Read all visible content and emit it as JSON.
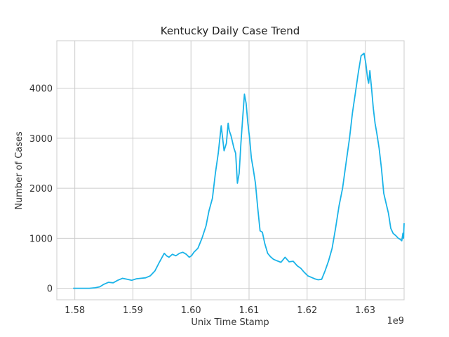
{
  "chart_data": {
    "type": "line",
    "title": "Kentucky Daily Case Trend",
    "xlabel": "Unix Time Stamp",
    "ylabel": "Number of Cases",
    "x_offset_text": "1e9",
    "xlim": [
      1.5769,
      1.6367
    ],
    "ylim": [
      -230,
      4950
    ],
    "x_ticks": [
      1.58,
      1.59,
      1.6,
      1.61,
      1.62,
      1.63
    ],
    "x_tick_labels": [
      "1.58",
      "1.59",
      "1.60",
      "1.61",
      "1.62",
      "1.63"
    ],
    "y_ticks": [
      0,
      1000,
      2000,
      3000,
      4000
    ],
    "y_tick_labels": [
      "0",
      "1000",
      "2000",
      "3000",
      "4000"
    ],
    "grid": true,
    "series": [
      {
        "color": "#1ab3e8",
        "x": [
          1.5797,
          1.5825,
          1.5835,
          1.5843,
          1.585,
          1.5858,
          1.5866,
          1.5874,
          1.5882,
          1.589,
          1.5898,
          1.5906,
          1.5914,
          1.5922,
          1.593,
          1.5938,
          1.5946,
          1.5954,
          1.5958,
          1.5962,
          1.5968,
          1.5974,
          1.598,
          1.5986,
          1.5992,
          1.5997,
          1.6001,
          1.6005,
          1.6012,
          1.6019,
          1.6026,
          1.6031,
          1.6037,
          1.6042,
          1.6047,
          1.6052,
          1.6057,
          1.6061,
          1.6064,
          1.6066,
          1.6069,
          1.6072,
          1.6074,
          1.6077,
          1.608,
          1.6083,
          1.6086,
          1.6089,
          1.6092,
          1.6095,
          1.6098,
          1.6101,
          1.6104,
          1.6107,
          1.6111,
          1.6115,
          1.6119,
          1.6123,
          1.6127,
          1.6132,
          1.6137,
          1.6142,
          1.6148,
          1.6155,
          1.6162,
          1.6169,
          1.6176,
          1.6183,
          1.6189,
          1.6195,
          1.6201,
          1.6207,
          1.6213,
          1.6219,
          1.6225,
          1.6231,
          1.6237,
          1.6243,
          1.6249,
          1.6255,
          1.6261,
          1.6267,
          1.6273,
          1.6278,
          1.6283,
          1.6288,
          1.6293,
          1.6298,
          1.6301,
          1.6304,
          1.6306,
          1.6308,
          1.6311,
          1.6314,
          1.6317,
          1.632,
          1.6324,
          1.6328,
          1.6332,
          1.6336,
          1.634,
          1.6344,
          1.6348,
          1.6353,
          1.6357,
          1.636,
          1.6363,
          1.6365,
          1.6366,
          1.6367
        ],
        "y": [
          0,
          0,
          10,
          30,
          80,
          120,
          110,
          160,
          200,
          180,
          160,
          190,
          200,
          210,
          250,
          350,
          530,
          700,
          650,
          620,
          680,
          650,
          700,
          720,
          680,
          620,
          650,
          720,
          800,
          1000,
          1250,
          1550,
          1800,
          2300,
          2700,
          3250,
          2750,
          2900,
          3300,
          3150,
          3050,
          2900,
          2800,
          2700,
          2100,
          2300,
          2900,
          3400,
          3880,
          3700,
          3300,
          3000,
          2600,
          2400,
          2100,
          1600,
          1150,
          1120,
          900,
          700,
          630,
          580,
          550,
          520,
          620,
          530,
          540,
          450,
          400,
          320,
          250,
          220,
          190,
          170,
          180,
          350,
          550,
          800,
          1200,
          1650,
          2000,
          2500,
          3000,
          3500,
          3900,
          4300,
          4650,
          4700,
          4500,
          4200,
          4100,
          4350,
          4000,
          3600,
          3300,
          3100,
          2800,
          2400,
          1900,
          1700,
          1500,
          1200,
          1100,
          1050,
          1000,
          980,
          950,
          1100,
          1000,
          1300
        ]
      }
    ]
  }
}
